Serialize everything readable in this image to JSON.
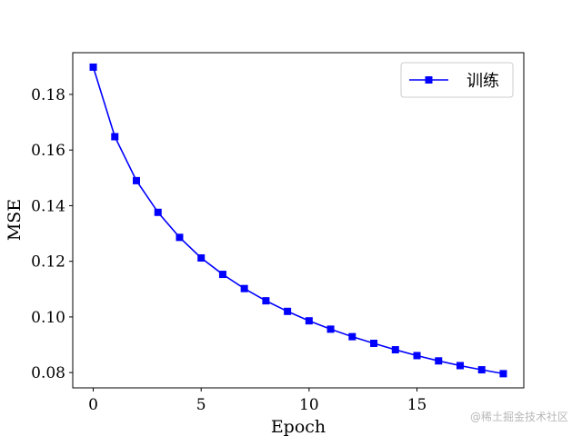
{
  "chart_data": {
    "type": "line",
    "x": [
      0,
      1,
      2,
      3,
      4,
      5,
      6,
      7,
      8,
      9,
      10,
      11,
      12,
      13,
      14,
      15,
      16,
      17,
      18,
      19
    ],
    "series": [
      {
        "name": "训练",
        "color": "#0000ff",
        "marker": "square",
        "values": [
          0.1898,
          0.1648,
          0.149,
          0.1376,
          0.1286,
          0.1212,
          0.1153,
          0.1102,
          0.1058,
          0.102,
          0.0986,
          0.0956,
          0.0929,
          0.0905,
          0.0882,
          0.0861,
          0.0842,
          0.0825,
          0.081,
          0.0796
        ]
      }
    ],
    "xlabel": "Epoch",
    "ylabel": "MSE",
    "xlim": [
      -0.95,
      19.95
    ],
    "ylim": [
      0.0745,
      0.195
    ],
    "xticks": [
      "0",
      "5",
      "10",
      "15"
    ],
    "xtick_values": [
      0,
      5,
      10,
      15
    ],
    "yticks": [
      "0.08",
      "0.10",
      "0.12",
      "0.14",
      "0.16",
      "0.18"
    ],
    "ytick_values": [
      0.08,
      0.1,
      0.12,
      0.14,
      0.16,
      0.18
    ],
    "legend_position": "top-right",
    "grid": false
  },
  "watermark": "@稀土掘金技术社区"
}
